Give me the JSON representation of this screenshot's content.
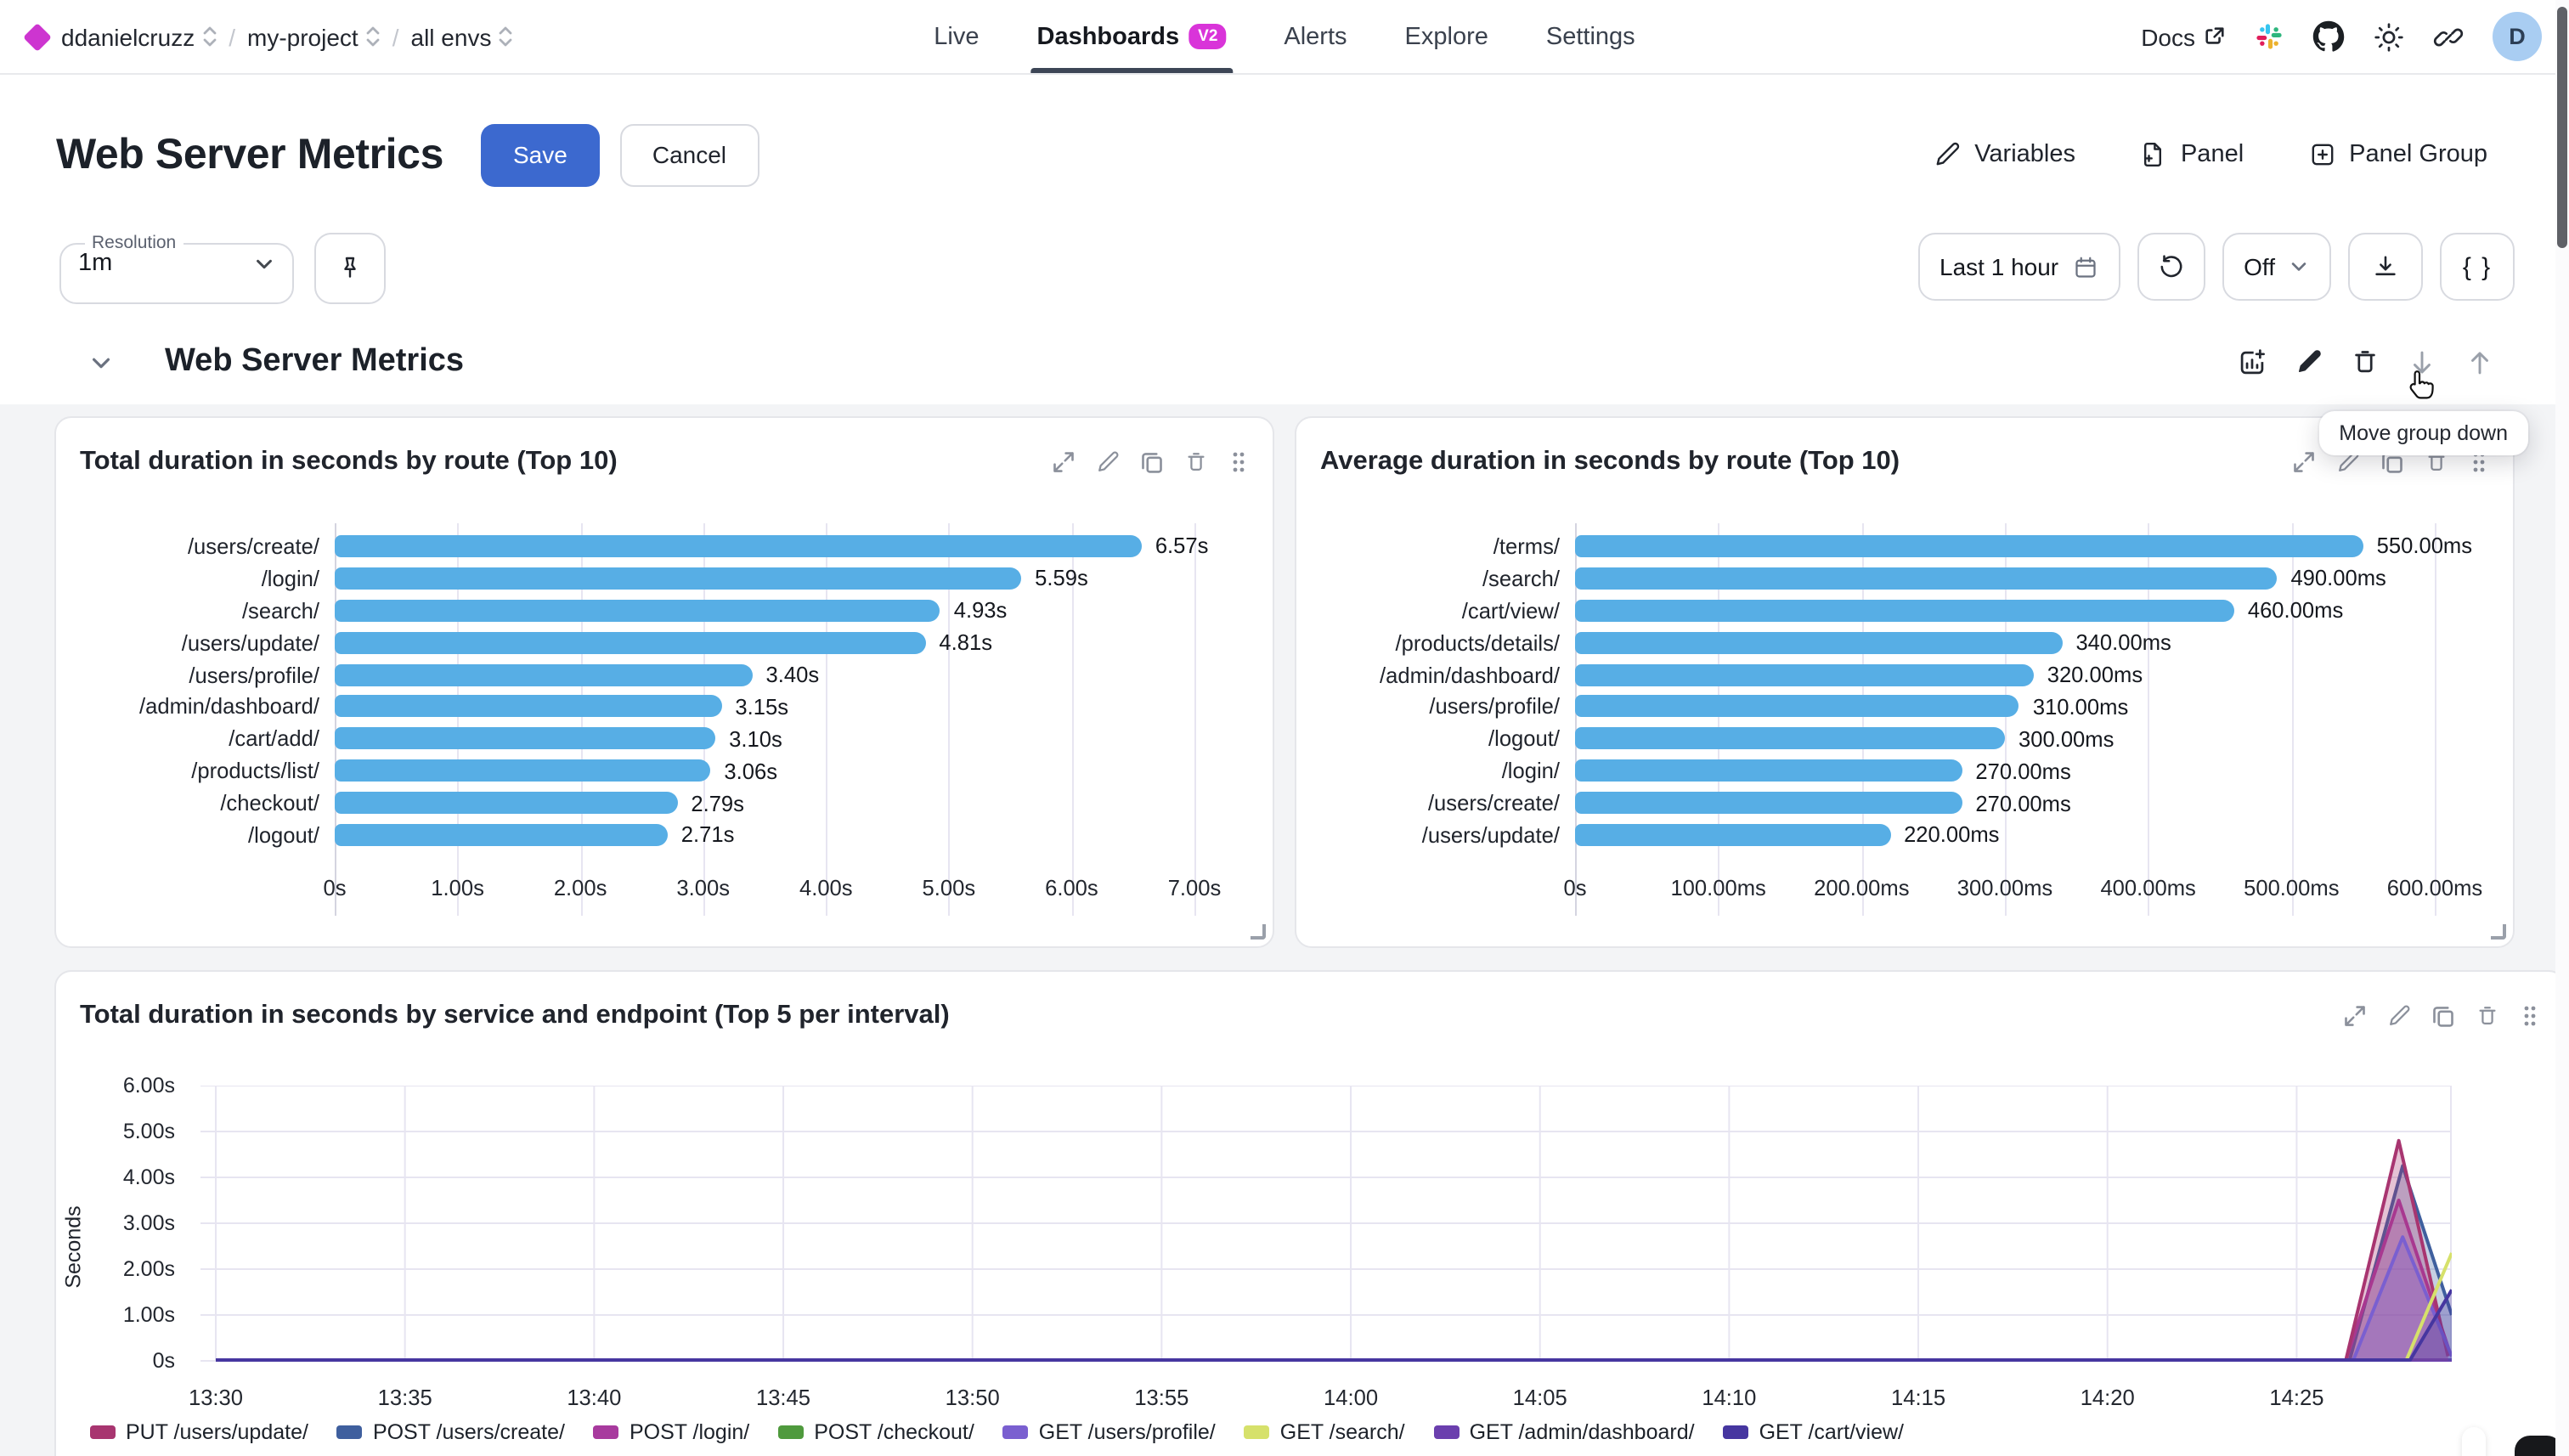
{
  "nav": {
    "breadcrumbs": [
      {
        "label": "ddanielcruzz"
      },
      {
        "label": "my-project"
      },
      {
        "label": "all envs"
      }
    ],
    "tabs": [
      {
        "label": "Live",
        "active": false
      },
      {
        "label": "Dashboards",
        "active": true,
        "badge": "V2"
      },
      {
        "label": "Alerts",
        "active": false
      },
      {
        "label": "Explore",
        "active": false
      },
      {
        "label": "Settings",
        "active": false
      }
    ],
    "docs_label": "Docs",
    "avatar_letter": "D"
  },
  "header": {
    "title": "Web Server Metrics",
    "save_label": "Save",
    "cancel_label": "Cancel",
    "variables_label": "Variables",
    "panel_label": "Panel",
    "panel_group_label": "Panel Group"
  },
  "controls": {
    "resolution_label": "Resolution",
    "resolution_value": "1m",
    "time_range": "Last 1 hour",
    "refresh_interval": "Off",
    "braces_label": "{ }",
    "tooltip": "Move group down"
  },
  "group": {
    "title": "Web Server Metrics"
  },
  "colors": {
    "accent_magenta": "#d934d9",
    "save_blue": "#3c69cf",
    "bar_blue": "#57aee5",
    "avatar_bg": "#a9cdf2"
  },
  "chart_data": [
    {
      "type": "bar",
      "orientation": "horizontal",
      "title": "Total duration in seconds by route (Top 10)",
      "categories": [
        "/users/create/",
        "/login/",
        "/search/",
        "/users/update/",
        "/users/profile/",
        "/admin/dashboard/",
        "/cart/add/",
        "/products/list/",
        "/checkout/",
        "/logout/"
      ],
      "values": [
        6.57,
        5.59,
        4.93,
        4.81,
        3.4,
        3.15,
        3.1,
        3.06,
        2.79,
        2.71
      ],
      "value_labels": [
        "6.57s",
        "5.59s",
        "4.93s",
        "4.81s",
        "3.40s",
        "3.15s",
        "3.10s",
        "3.06s",
        "2.79s",
        "2.71s"
      ],
      "x_ticks": [
        "0s",
        "1.00s",
        "2.00s",
        "3.00s",
        "4.00s",
        "5.00s",
        "6.00s",
        "7.00s"
      ],
      "xlim": [
        0,
        7
      ],
      "bar_color": "#57aee5",
      "grid": true
    },
    {
      "type": "bar",
      "orientation": "horizontal",
      "title": "Average duration in seconds by route (Top 10)",
      "categories": [
        "/terms/",
        "/search/",
        "/cart/view/",
        "/products/details/",
        "/admin/dashboard/",
        "/users/profile/",
        "/logout/",
        "/login/",
        "/users/create/",
        "/users/update/"
      ],
      "values": [
        550,
        490,
        460,
        340,
        320,
        310,
        300,
        270,
        270,
        220
      ],
      "value_labels": [
        "550.00ms",
        "490.00ms",
        "460.00ms",
        "340.00ms",
        "320.00ms",
        "310.00ms",
        "300.00ms",
        "270.00ms",
        "270.00ms",
        "220.00ms"
      ],
      "x_ticks": [
        "0s",
        "100.00ms",
        "200.00ms",
        "300.00ms",
        "400.00ms",
        "500.00ms",
        "600.00ms"
      ],
      "xlim": [
        0,
        600
      ],
      "bar_color": "#57aee5",
      "grid": true
    },
    {
      "type": "area",
      "title": "Total duration in seconds by service and endpoint (Top 5 per interval)",
      "ylabel": "Seconds",
      "y_ticks": [
        "6.00s",
        "5.00s",
        "4.00s",
        "3.00s",
        "2.00s",
        "1.00s",
        "0s"
      ],
      "ylim": [
        0,
        6
      ],
      "x_ticks": [
        "13:30",
        "13:35",
        "13:40",
        "13:45",
        "13:50",
        "13:55",
        "14:00",
        "14:05",
        "14:10",
        "14:15",
        "14:20",
        "14:25"
      ],
      "x_tick_interval_min": 5,
      "x_range_min": [
        0,
        59.1
      ],
      "grid": true,
      "legend_position": "bottom",
      "note": "All series flat at ~0s from 13:30 until ~14:26, then a sharp spike near 14:27-14:29 (values approximate)",
      "series": [
        {
          "name": "PUT /users/update/",
          "color": "#a83570",
          "fill": true,
          "points": [
            [
              0,
              0.02
            ],
            [
              56.3,
              0.02
            ],
            [
              57.7,
              4.8
            ],
            [
              59.0,
              0.1
            ]
          ]
        },
        {
          "name": "POST /users/create/",
          "color": "#3f5f9e",
          "fill": true,
          "points": [
            [
              0,
              0.02
            ],
            [
              56.4,
              0.02
            ],
            [
              57.8,
              4.25
            ],
            [
              59.1,
              1.0
            ]
          ]
        },
        {
          "name": "POST /login/",
          "color": "#a83a9e",
          "fill": true,
          "points": [
            [
              0,
              0.02
            ],
            [
              56.3,
              0.02
            ],
            [
              57.7,
              3.5
            ],
            [
              59.0,
              0.3
            ]
          ]
        },
        {
          "name": "POST /checkout/",
          "color": "#4f9a3d",
          "fill": false,
          "points": [
            [
              0,
              0.02
            ],
            [
              59.1,
              0.02
            ]
          ]
        },
        {
          "name": "GET /users/profile/",
          "color": "#7a5fd0",
          "fill": true,
          "points": [
            [
              0,
              0.02
            ],
            [
              56.5,
              0.02
            ],
            [
              57.8,
              2.7
            ],
            [
              59.1,
              0.1
            ]
          ]
        },
        {
          "name": "GET /search/",
          "color": "#d6e16b",
          "fill": false,
          "points": [
            [
              0,
              0.02
            ],
            [
              57.9,
              0.02
            ],
            [
              59.1,
              2.35
            ]
          ]
        },
        {
          "name": "GET /admin/dashboard/",
          "color": "#6b3fae",
          "fill": false,
          "points": [
            [
              0,
              0.02
            ],
            [
              59.1,
              0.02
            ]
          ]
        },
        {
          "name": "GET /cart/view/",
          "color": "#4636a0",
          "fill": true,
          "points": [
            [
              0,
              0.02
            ],
            [
              58.0,
              0.02
            ],
            [
              59.1,
              1.55
            ]
          ]
        }
      ],
      "draw_order": [
        3,
        6,
        1,
        2,
        0,
        4,
        5,
        7
      ]
    }
  ]
}
